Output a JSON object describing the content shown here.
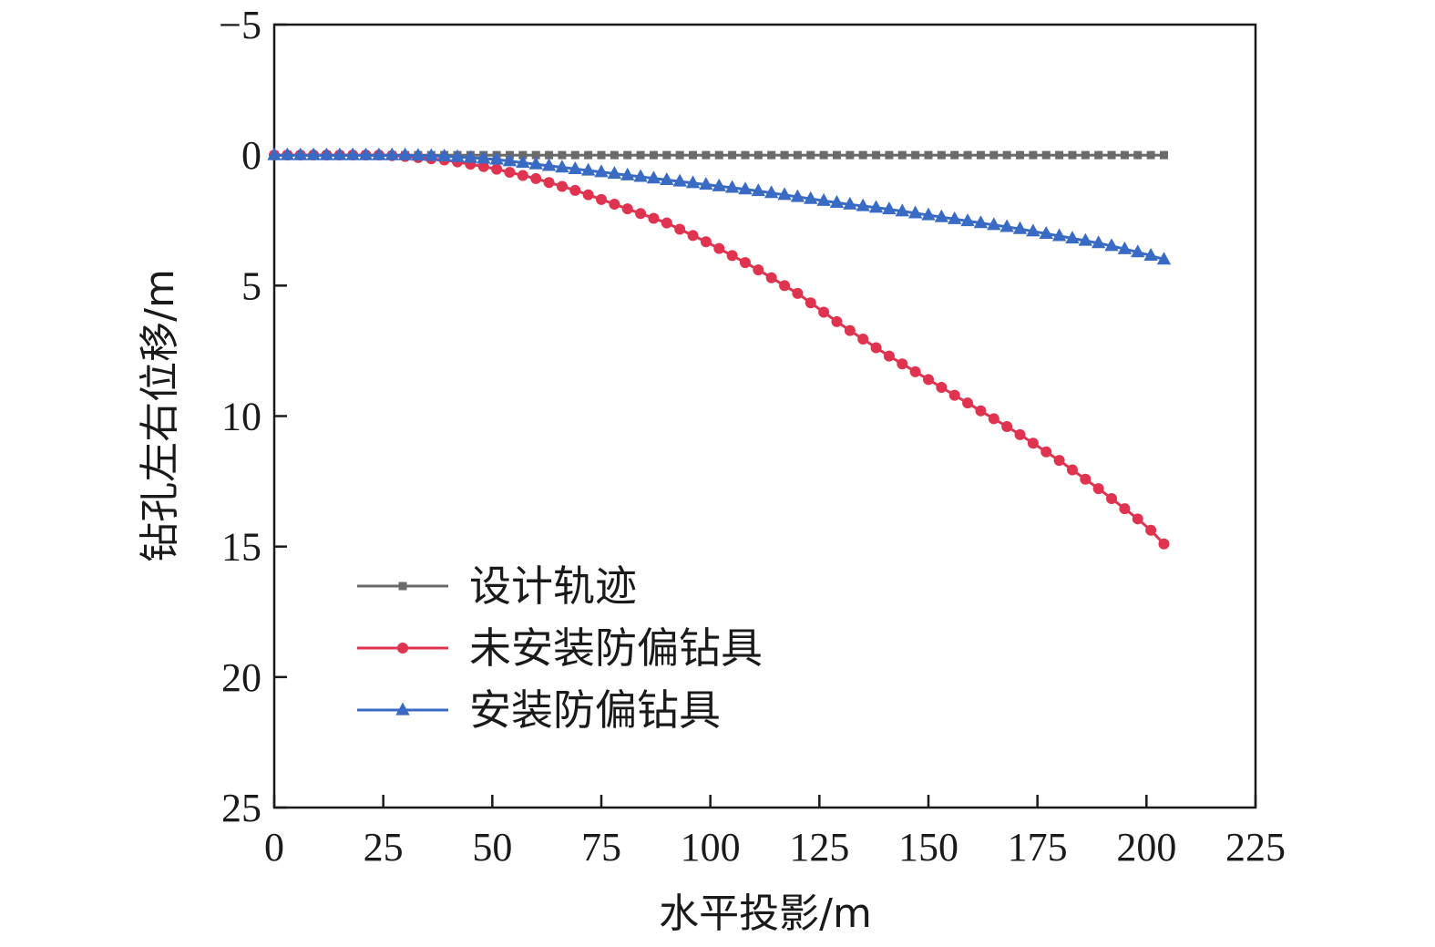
{
  "chart_data": {
    "type": "line",
    "xlabel": "水平投影/m",
    "ylabel": "钻孔左右位移/m",
    "xlim": [
      0,
      225
    ],
    "ylim": [
      -5,
      25
    ],
    "y_inverted": true,
    "xticks": [
      0,
      25,
      50,
      75,
      100,
      125,
      150,
      175,
      200,
      225
    ],
    "yticks": [
      -5,
      0,
      5,
      10,
      15,
      20,
      25
    ],
    "xtick_labels": [
      "0",
      "25",
      "50",
      "75",
      "100",
      "125",
      "150",
      "175",
      "200",
      "225"
    ],
    "ytick_labels": [
      "−5",
      "0",
      "5",
      "10",
      "15",
      "20",
      "25"
    ],
    "grid": false,
    "legend_position": "bottom-left",
    "x_range": [
      0,
      204
    ],
    "x_step": 3,
    "series": [
      {
        "name": "设计轨迹",
        "color": "#6b6b6b",
        "marker": "square",
        "key_points": [
          [
            0,
            0
          ],
          [
            204,
            0
          ]
        ]
      },
      {
        "name": "未安装防偏钻具",
        "color": "#e0334f",
        "marker": "circle",
        "key_points": [
          [
            0,
            0
          ],
          [
            25,
            0
          ],
          [
            30,
            0.05
          ],
          [
            40,
            0.2
          ],
          [
            50,
            0.5
          ],
          [
            60,
            0.9
          ],
          [
            70,
            1.4
          ],
          [
            80,
            2.0
          ],
          [
            90,
            2.6
          ],
          [
            100,
            3.4
          ],
          [
            110,
            4.3
          ],
          [
            120,
            5.3
          ],
          [
            130,
            6.5
          ],
          [
            140,
            7.6
          ],
          [
            150,
            8.6
          ],
          [
            160,
            9.6
          ],
          [
            170,
            10.6
          ],
          [
            180,
            11.7
          ],
          [
            190,
            12.9
          ],
          [
            200,
            14.2
          ],
          [
            204,
            14.9
          ]
        ]
      },
      {
        "name": "安装防偏钻具",
        "color": "#3a6bc4",
        "marker": "triangle",
        "key_points": [
          [
            0,
            0
          ],
          [
            30,
            0
          ],
          [
            40,
            0.05
          ],
          [
            50,
            0.15
          ],
          [
            60,
            0.35
          ],
          [
            70,
            0.55
          ],
          [
            80,
            0.75
          ],
          [
            90,
            0.95
          ],
          [
            100,
            1.15
          ],
          [
            110,
            1.35
          ],
          [
            120,
            1.6
          ],
          [
            130,
            1.85
          ],
          [
            140,
            2.05
          ],
          [
            150,
            2.3
          ],
          [
            160,
            2.55
          ],
          [
            170,
            2.8
          ],
          [
            180,
            3.1
          ],
          [
            190,
            3.4
          ],
          [
            200,
            3.8
          ],
          [
            204,
            4.0
          ]
        ]
      }
    ]
  }
}
